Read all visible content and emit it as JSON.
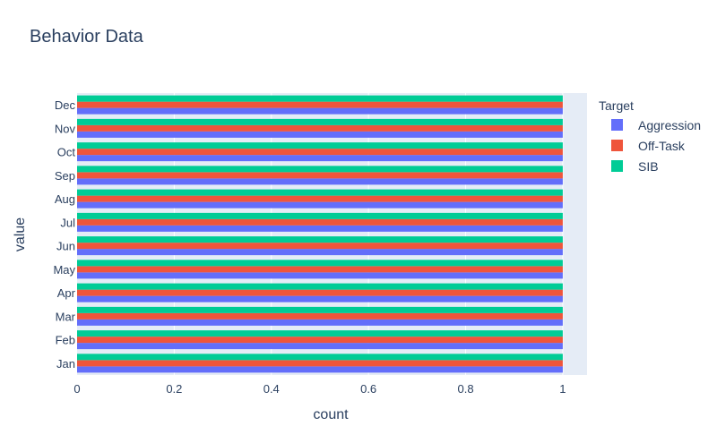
{
  "chart_data": {
    "type": "bar",
    "orientation": "horizontal",
    "title": "Behavior Data",
    "xlabel": "count",
    "ylabel": "value",
    "xlim": [
      0,
      1.05
    ],
    "x_ticks": [
      "0",
      "0.2",
      "0.4",
      "0.6",
      "0.8",
      "1"
    ],
    "x_tick_values": [
      0,
      0.2,
      0.4,
      0.6,
      0.8,
      1
    ],
    "categories": [
      "Jan",
      "Feb",
      "Mar",
      "Apr",
      "May",
      "Jun",
      "Jul",
      "Aug",
      "Sep",
      "Oct",
      "Nov",
      "Dec"
    ],
    "legend_title": "Target",
    "legend_position": "right",
    "grid": true,
    "series": [
      {
        "name": "Aggression",
        "color": "#636efa",
        "values": [
          1,
          1,
          1,
          1,
          1,
          1,
          1,
          1,
          1,
          1,
          1,
          1
        ]
      },
      {
        "name": "Off-Task",
        "color": "#ef553b",
        "values": [
          1,
          1,
          1,
          1,
          1,
          1,
          1,
          1,
          1,
          1,
          1,
          1
        ]
      },
      {
        "name": "SIB",
        "color": "#00cc96",
        "values": [
          1,
          1,
          1,
          1,
          1,
          1,
          1,
          1,
          1,
          1,
          1,
          1
        ]
      }
    ],
    "plot_background": "#e5ecf6"
  }
}
